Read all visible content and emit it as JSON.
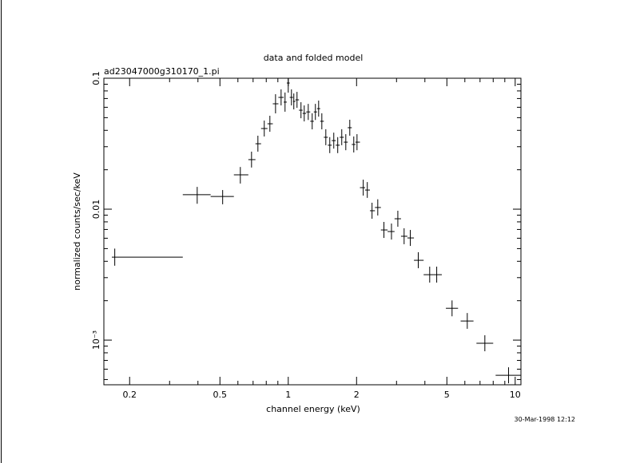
{
  "chart_data": {
    "type": "errorbar",
    "title": "data and folded model",
    "subtitle": "ad23047000g310170_1.pi",
    "x_label": "channel energy (keV)",
    "y_label": "normalized counts/sec/keV",
    "timestamp": "30-Mar-1998 12:12",
    "xscale": "log",
    "yscale": "log",
    "xlim": [
      0.154,
      10.6
    ],
    "ylim": [
      0.000456,
      0.1
    ],
    "xticks": [
      0.2,
      0.5,
      1,
      2,
      5,
      10
    ],
    "xticks_minor": [
      0.3,
      0.4,
      0.6,
      0.7,
      0.8,
      0.9,
      3,
      4,
      6,
      7,
      8,
      9
    ],
    "yticks": [
      0.1,
      0.01,
      {
        "value": 0.001,
        "label": "10⁻³"
      }
    ],
    "yticks_minor": [
      0.0005,
      0.0006,
      0.0007,
      0.0008,
      0.0009,
      0.002,
      0.003,
      0.004,
      0.005,
      0.006,
      0.007,
      0.008,
      0.009,
      0.02,
      0.03,
      0.04,
      0.05,
      0.06,
      0.07,
      0.08,
      0.09
    ],
    "color": "#000000",
    "series": [
      {
        "x": [
          0.172,
          0.397,
          0.514,
          0.615,
          0.689,
          0.735,
          0.784,
          0.83,
          0.879,
          0.93,
          0.968,
          1.0,
          1.033,
          1.058,
          1.093,
          1.138,
          1.176,
          1.225,
          1.275,
          1.317,
          1.361,
          1.406,
          1.464,
          1.524,
          1.587,
          1.652,
          1.721,
          1.793,
          1.867,
          1.944,
          2.009,
          2.14,
          2.23,
          2.34,
          2.48,
          2.64,
          2.85,
          3.04,
          3.24,
          3.45,
          3.74,
          4.2,
          4.51,
          5.27,
          6.15,
          7.35,
          9.35
        ],
        "x_lo": [
          0.167,
          0.343,
          0.455,
          0.576,
          0.667,
          0.717,
          0.759,
          0.81,
          0.855,
          0.905,
          0.955,
          0.985,
          1.015,
          1.05,
          1.075,
          1.115,
          1.157,
          1.2,
          1.25,
          1.296,
          1.339,
          1.383,
          1.435,
          1.494,
          1.555,
          1.619,
          1.686,
          1.757,
          1.829,
          1.905,
          1.977,
          2.07,
          2.18,
          2.29,
          2.41,
          2.56,
          2.74,
          2.94,
          3.14,
          3.35,
          3.58,
          3.95,
          4.36,
          4.95,
          5.75,
          6.75,
          8.2
        ],
        "x_hi": [
          0.343,
          0.455,
          0.576,
          0.667,
          0.717,
          0.759,
          0.81,
          0.855,
          0.905,
          0.955,
          0.985,
          1.015,
          1.05,
          1.075,
          1.115,
          1.157,
          1.2,
          1.25,
          1.296,
          1.339,
          1.383,
          1.435,
          1.494,
          1.555,
          1.619,
          1.686,
          1.757,
          1.829,
          1.905,
          1.977,
          2.07,
          2.18,
          2.29,
          2.41,
          2.56,
          2.74,
          2.94,
          3.14,
          3.35,
          3.58,
          3.95,
          4.36,
          4.75,
          5.6,
          6.55,
          8.0,
          10.6
        ],
        "y": [
          0.0043,
          0.0129,
          0.0125,
          0.0183,
          0.0239,
          0.0316,
          0.0413,
          0.0449,
          0.0638,
          0.0714,
          0.0657,
          0.0919,
          0.0714,
          0.0665,
          0.0684,
          0.057,
          0.0539,
          0.0553,
          0.0469,
          0.0553,
          0.0586,
          0.0469,
          0.0354,
          0.0308,
          0.0334,
          0.0308,
          0.0354,
          0.0325,
          0.0419,
          0.0312,
          0.0325,
          0.0146,
          0.014,
          0.00973,
          0.0103,
          0.00694,
          0.00675,
          0.00845,
          0.00621,
          0.00603,
          0.00407,
          0.00316,
          0.00316,
          0.00175,
          0.0014,
          0.000946,
          0.000539
        ],
        "y_lo": [
          0.0037,
          0.011,
          0.0109,
          0.0157,
          0.0208,
          0.0275,
          0.0359,
          0.039,
          0.0539,
          0.062,
          0.0555,
          0.0776,
          0.062,
          0.0578,
          0.0594,
          0.0495,
          0.0468,
          0.048,
          0.0407,
          0.048,
          0.0509,
          0.0407,
          0.0308,
          0.0268,
          0.029,
          0.0268,
          0.0308,
          0.0282,
          0.0364,
          0.0271,
          0.0282,
          0.0127,
          0.0122,
          0.00845,
          0.00895,
          0.00603,
          0.00586,
          0.00734,
          0.0054,
          0.00524,
          0.00354,
          0.00275,
          0.00275,
          0.00152,
          0.00122,
          0.000822,
          0.000468
        ],
        "y_hi": [
          0.005,
          0.0148,
          0.014,
          0.021,
          0.0275,
          0.0364,
          0.0475,
          0.0517,
          0.0755,
          0.0822,
          0.0778,
          0.109,
          0.0822,
          0.0765,
          0.0787,
          0.0656,
          0.062,
          0.0637,
          0.054,
          0.0637,
          0.0675,
          0.054,
          0.0408,
          0.0355,
          0.0384,
          0.0355,
          0.0408,
          0.0374,
          0.0482,
          0.0359,
          0.0374,
          0.0168,
          0.0161,
          0.0112,
          0.0119,
          0.00799,
          0.00777,
          0.00973,
          0.00715,
          0.00694,
          0.00469,
          0.00364,
          0.00364,
          0.00201,
          0.00161,
          0.00109,
          0.00062
        ]
      }
    ]
  }
}
